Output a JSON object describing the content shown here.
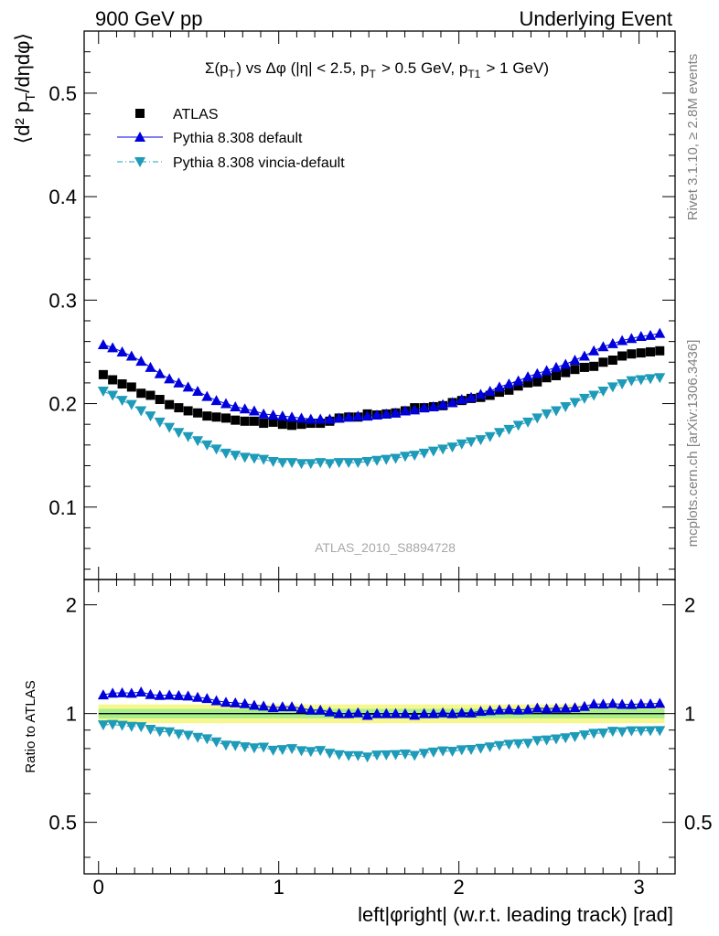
{
  "header": {
    "left": "900 GeV pp",
    "right": "Underlying Event"
  },
  "side": {
    "rivet": "Rivet 3.1.10, ≥ 2.8M events",
    "mcplots": "mcplots.cern.ch [arXiv:1306.3436]"
  },
  "chart_data": [
    {
      "type": "scatter",
      "title": "Σ(p_T) vs Δφ (|η| < 2.5, p_T > 0.5 GeV, p_T1 > 1 GeV)",
      "ylabel": "⟨d² p_T/dηdφ⟩",
      "xlabel": "",
      "xlim": [
        -0.08,
        3.2
      ],
      "ylim": [
        0.03,
        0.56
      ],
      "yticks": [
        0.1,
        0.2,
        0.3,
        0.4,
        0.5
      ],
      "watermark": "ATLAS_2010_S8894728",
      "legend_position": "top-left",
      "x": [
        0.026,
        0.078,
        0.131,
        0.183,
        0.236,
        0.288,
        0.34,
        0.393,
        0.445,
        0.497,
        0.55,
        0.602,
        0.654,
        0.707,
        0.759,
        0.812,
        0.864,
        0.916,
        0.969,
        1.021,
        1.073,
        1.126,
        1.178,
        1.231,
        1.283,
        1.335,
        1.388,
        1.44,
        1.492,
        1.545,
        1.597,
        1.649,
        1.702,
        1.754,
        1.807,
        1.859,
        1.911,
        1.964,
        2.016,
        2.068,
        2.121,
        2.173,
        2.225,
        2.278,
        2.33,
        2.383,
        2.435,
        2.487,
        2.54,
        2.592,
        2.644,
        2.697,
        2.749,
        2.801,
        2.854,
        2.906,
        2.958,
        3.011,
        3.063,
        3.115
      ],
      "series": [
        {
          "name": "ATLAS",
          "color": "#000000",
          "marker": "square",
          "values": [
            0.228,
            0.223,
            0.219,
            0.216,
            0.21,
            0.208,
            0.204,
            0.199,
            0.196,
            0.193,
            0.191,
            0.188,
            0.187,
            0.186,
            0.184,
            0.183,
            0.183,
            0.181,
            0.182,
            0.18,
            0.179,
            0.18,
            0.181,
            0.181,
            0.183,
            0.186,
            0.187,
            0.187,
            0.19,
            0.189,
            0.19,
            0.191,
            0.193,
            0.196,
            0.196,
            0.197,
            0.198,
            0.201,
            0.203,
            0.205,
            0.206,
            0.208,
            0.211,
            0.213,
            0.217,
            0.22,
            0.221,
            0.225,
            0.227,
            0.23,
            0.233,
            0.235,
            0.236,
            0.24,
            0.242,
            0.246,
            0.248,
            0.249,
            0.25,
            0.251
          ]
        },
        {
          "name": "Pythia 8.308 default",
          "color": "#0000dd",
          "marker": "triangle-up",
          "values": [
            0.257,
            0.254,
            0.25,
            0.246,
            0.241,
            0.235,
            0.229,
            0.224,
            0.22,
            0.216,
            0.212,
            0.207,
            0.203,
            0.2,
            0.197,
            0.195,
            0.193,
            0.19,
            0.189,
            0.188,
            0.187,
            0.186,
            0.185,
            0.185,
            0.185,
            0.186,
            0.187,
            0.188,
            0.188,
            0.189,
            0.19,
            0.191,
            0.193,
            0.194,
            0.196,
            0.197,
            0.199,
            0.201,
            0.204,
            0.206,
            0.209,
            0.212,
            0.216,
            0.219,
            0.222,
            0.226,
            0.229,
            0.232,
            0.235,
            0.238,
            0.242,
            0.246,
            0.251,
            0.255,
            0.258,
            0.261,
            0.263,
            0.265,
            0.266,
            0.268
          ]
        },
        {
          "name": "Pythia 8.308 vincia-default",
          "color": "#1e9bb9",
          "marker": "triangle-down",
          "values": [
            0.212,
            0.208,
            0.203,
            0.199,
            0.193,
            0.188,
            0.182,
            0.177,
            0.172,
            0.168,
            0.164,
            0.16,
            0.156,
            0.152,
            0.15,
            0.148,
            0.147,
            0.146,
            0.144,
            0.143,
            0.143,
            0.142,
            0.142,
            0.143,
            0.142,
            0.143,
            0.143,
            0.143,
            0.144,
            0.145,
            0.146,
            0.147,
            0.149,
            0.15,
            0.152,
            0.154,
            0.156,
            0.158,
            0.161,
            0.163,
            0.165,
            0.168,
            0.172,
            0.175,
            0.179,
            0.182,
            0.186,
            0.19,
            0.193,
            0.197,
            0.201,
            0.205,
            0.208,
            0.212,
            0.216,
            0.219,
            0.222,
            0.223,
            0.224,
            0.225
          ]
        }
      ]
    },
    {
      "type": "scatter",
      "title": "",
      "ylabel": "Ratio to ATLAS",
      "xlabel": "left|φright| (w.r.t. leading track) [rad]",
      "xlim": [
        -0.08,
        3.2
      ],
      "ylim": [
        0.36,
        2.35
      ],
      "ylog": true,
      "xticks": [
        0,
        1,
        2,
        3
      ],
      "yticks": [
        0.5,
        1,
        2
      ],
      "reference_line": 1,
      "band_inner": [
        0.97,
        1.03
      ],
      "band_outer": [
        0.94,
        1.06
      ],
      "series": [
        {
          "name": "Pythia 8.308 default",
          "color": "#0000dd",
          "marker": "triangle-up",
          "values": []
        },
        {
          "name": "Pythia 8.308 vincia-default",
          "color": "#1e9bb9",
          "marker": "triangle-down",
          "values": []
        }
      ]
    }
  ]
}
